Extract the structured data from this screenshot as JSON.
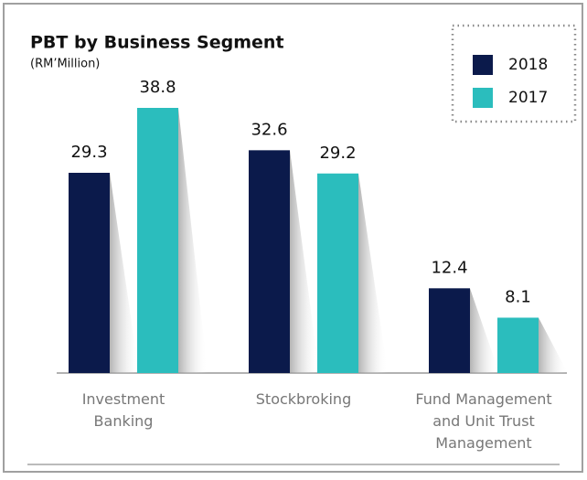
{
  "chart_data": {
    "type": "bar",
    "title": "PBT by Business Segment",
    "subtitle": "(RM’Million)",
    "categories": [
      "Investment Banking",
      "Stockbroking",
      "Fund Management and Unit Trust Management"
    ],
    "series": [
      {
        "name": "2018",
        "color": "#0b1a4b",
        "values": [
          29.3,
          32.6,
          12.4
        ]
      },
      {
        "name": "2017",
        "color": "#2bbdbd",
        "values": [
          38.8,
          29.2,
          8.1
        ]
      }
    ],
    "legend": "top-right"
  }
}
